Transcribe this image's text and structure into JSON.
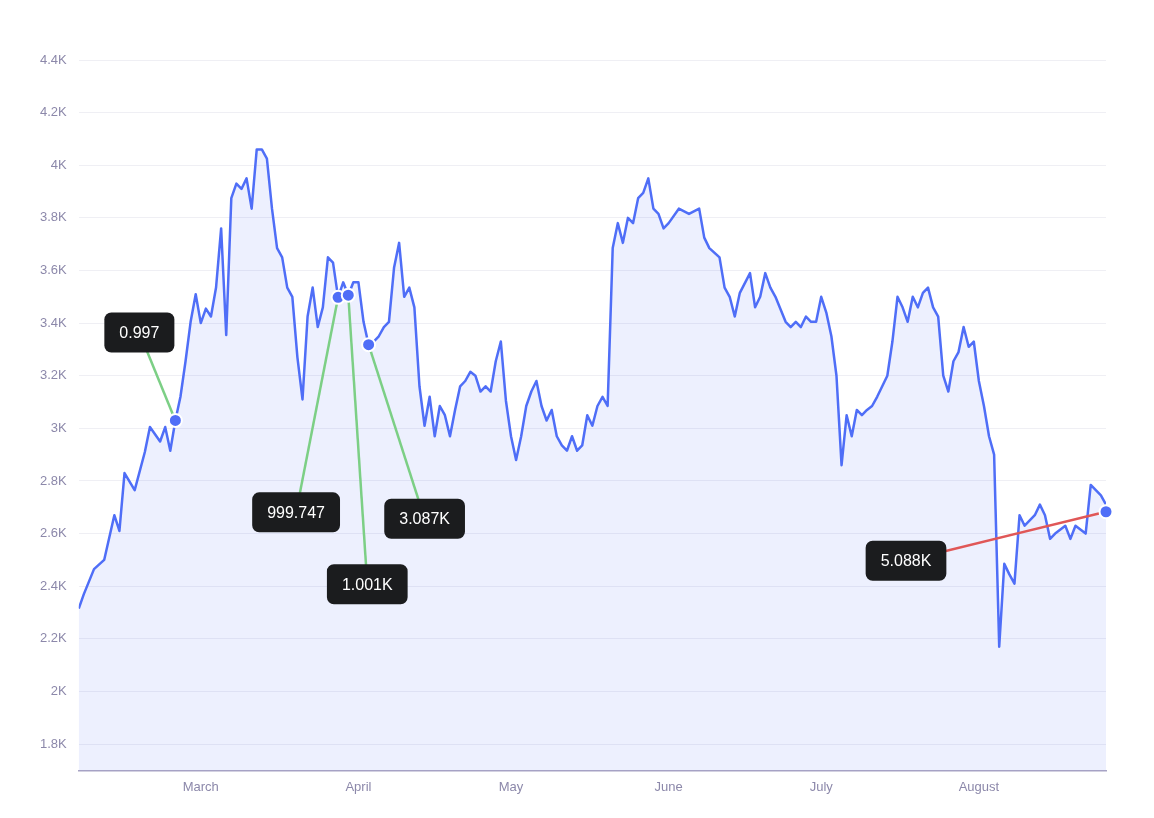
{
  "chart_data": {
    "type": "area",
    "x": [
      "--02-06",
      "--02-07",
      "--02-09",
      "--02-11",
      "--02-13",
      "--02-14",
      "--02-15",
      "--02-17",
      "--02-19",
      "--02-20",
      "--02-22",
      "--02-23",
      "--02-24",
      "--02-25",
      "--02-26",
      "--02-27",
      "--02-28",
      "--02-29",
      "--03-01",
      "--03-02",
      "--03-03",
      "--03-04",
      "--03-05",
      "--03-06",
      "--03-07",
      "--03-08",
      "--03-09",
      "--03-10",
      "--03-11",
      "--03-12",
      "--03-13",
      "--03-14",
      "--03-15",
      "--03-16",
      "--03-17",
      "--03-18",
      "--03-19",
      "--03-20",
      "--03-21",
      "--03-22",
      "--03-23",
      "--03-24",
      "--03-25",
      "--03-26",
      "--03-27",
      "--03-28",
      "--03-29",
      "--03-30",
      "--03-31",
      "--04-01",
      "--04-02",
      "--04-03",
      "--04-04",
      "--04-05",
      "--04-06",
      "--04-07",
      "--04-08",
      "--04-09",
      "--04-10",
      "--04-11",
      "--04-12",
      "--04-13",
      "--04-14",
      "--04-15",
      "--04-16",
      "--04-17",
      "--04-18",
      "--04-19",
      "--04-20",
      "--04-21",
      "--04-22",
      "--04-23",
      "--04-24",
      "--04-25",
      "--04-26",
      "--04-27",
      "--04-28",
      "--04-29",
      "--04-30",
      "--05-01",
      "--05-02",
      "--05-03",
      "--05-04",
      "--05-05",
      "--05-06",
      "--05-07",
      "--05-08",
      "--05-09",
      "--05-10",
      "--05-11",
      "--05-12",
      "--05-13",
      "--05-14",
      "--05-15",
      "--05-16",
      "--05-17",
      "--05-18",
      "--05-19",
      "--05-20",
      "--05-21",
      "--05-22",
      "--05-23",
      "--05-24",
      "--05-25",
      "--05-26",
      "--05-27",
      "--05-28",
      "--05-29",
      "--05-30",
      "--05-31",
      "--06-01",
      "--06-03",
      "--06-05",
      "--06-07",
      "--06-08",
      "--06-09",
      "--06-11",
      "--06-12",
      "--06-13",
      "--06-14",
      "--06-15",
      "--06-17",
      "--06-18",
      "--06-19",
      "--06-20",
      "--06-21",
      "--06-22",
      "--06-24",
      "--06-25",
      "--06-26",
      "--06-27",
      "--06-28",
      "--06-29",
      "--06-30",
      "--07-01",
      "--07-02",
      "--07-03",
      "--07-04",
      "--07-05",
      "--07-06",
      "--07-07",
      "--07-08",
      "--07-09",
      "--07-10",
      "--07-11",
      "--07-12",
      "--07-13",
      "--07-14",
      "--07-15",
      "--07-16",
      "--07-17",
      "--07-18",
      "--07-19",
      "--07-20",
      "--07-21",
      "--07-22",
      "--07-23",
      "--07-24",
      "--07-25",
      "--07-26",
      "--07-27",
      "--07-28",
      "--07-29",
      "--07-30",
      "--07-31",
      "--08-01",
      "--08-02",
      "--08-03",
      "--08-04",
      "--08-05",
      "--08-06",
      "--08-07",
      "--08-08",
      "--08-09",
      "--08-10",
      "--08-12",
      "--08-13",
      "--08-14",
      "--08-15",
      "--08-16",
      "--08-18",
      "--08-19",
      "--08-20",
      "--08-22",
      "--08-23",
      "--08-24",
      "--08-25",
      "--08-26"
    ],
    "series": [
      {
        "color": "#4f6ef7",
        "values": [
          2315,
          2370,
          2465,
          2500,
          2670,
          2610,
          2830,
          2765,
          2910,
          3005,
          2950,
          3005,
          2915,
          3030,
          3120,
          3255,
          3405,
          3510,
          3400,
          3455,
          3425,
          3535,
          3760,
          3355,
          3875,
          3930,
          3910,
          3950,
          3835,
          4060,
          4060,
          4025,
          3835,
          3685,
          3650,
          3535,
          3500,
          3270,
          3110,
          3425,
          3535,
          3385,
          3460,
          3650,
          3630,
          3498,
          3555,
          3506,
          3555,
          3555,
          3405,
          3318,
          3330,
          3350,
          3385,
          3405,
          3610,
          3705,
          3500,
          3535,
          3460,
          3160,
          3010,
          3120,
          2970,
          3085,
          3050,
          2970,
          3070,
          3160,
          3180,
          3215,
          3200,
          3140,
          3160,
          3140,
          3255,
          3330,
          3105,
          2970,
          2880,
          2970,
          3085,
          3140,
          3180,
          3085,
          3030,
          3070,
          2970,
          2935,
          2915,
          2970,
          2915,
          2935,
          3050,
          3010,
          3085,
          3120,
          3085,
          3685,
          3780,
          3705,
          3800,
          3780,
          3875,
          3895,
          3950,
          3835,
          3815,
          3760,
          3780,
          3835,
          3815,
          3835,
          3725,
          3685,
          3650,
          3535,
          3500,
          3425,
          3515,
          3590,
          3460,
          3500,
          3590,
          3535,
          3500,
          3405,
          3385,
          3405,
          3385,
          3425,
          3405,
          3405,
          3500,
          3440,
          3350,
          3200,
          2860,
          3050,
          2970,
          3070,
          3050,
          3070,
          3085,
          3120,
          3160,
          3200,
          3330,
          3500,
          3460,
          3405,
          3500,
          3460,
          3515,
          3535,
          3460,
          3425,
          3200,
          3140,
          3255,
          3290,
          3385,
          3310,
          3330,
          3180,
          3085,
          2970,
          2900,
          2170,
          2485,
          2445,
          2410,
          2670,
          2630,
          2670,
          2710,
          2670,
          2580,
          2600,
          2630,
          2580,
          2630,
          2600,
          2785,
          2765,
          2745,
          2710
        ]
      }
    ],
    "xlim": [
      "--02-06",
      "--08-26"
    ],
    "xticks": [
      {
        "value": "--03-01",
        "label": "March"
      },
      {
        "value": "--04-01",
        "label": "April"
      },
      {
        "value": "--05-01",
        "label": "May"
      },
      {
        "value": "--06-01",
        "label": "June"
      },
      {
        "value": "--07-01",
        "label": "July"
      },
      {
        "value": "--08-01",
        "label": "August"
      }
    ],
    "ylim": [
      1700,
      4400
    ],
    "yticks": [
      {
        "value": 1800,
        "label": "1.8K"
      },
      {
        "value": 2000,
        "label": "2K"
      },
      {
        "value": 2200,
        "label": "2.2K"
      },
      {
        "value": 2400,
        "label": "2.4K"
      },
      {
        "value": 2600,
        "label": "2.6K"
      },
      {
        "value": 2800,
        "label": "2.8K"
      },
      {
        "value": 3000,
        "label": "3K"
      },
      {
        "value": 3200,
        "label": "3.2K"
      },
      {
        "value": 3400,
        "label": "3.4K"
      },
      {
        "value": 3600,
        "label": "3.6K"
      },
      {
        "value": 3800,
        "label": "3.8K"
      },
      {
        "value": 4000,
        "label": "4K"
      },
      {
        "value": 4200,
        "label": "4.2K"
      },
      {
        "value": 4400,
        "label": "4.4K"
      }
    ],
    "annotations": [
      {
        "text": "0.997",
        "x": "--02-25",
        "y": 3030
      },
      {
        "text": "999.747",
        "x": "--03-28",
        "y": 3498
      },
      {
        "text": "1.001K",
        "x": "--03-30",
        "y": 3506
      },
      {
        "text": "3.087K",
        "x": "--04-03",
        "y": 3318
      },
      {
        "text": "5.088K",
        "x": "--08-26",
        "y": 2683
      }
    ],
    "grid": "y",
    "legend": false,
    "marker": "none",
    "line_style": "solid"
  }
}
